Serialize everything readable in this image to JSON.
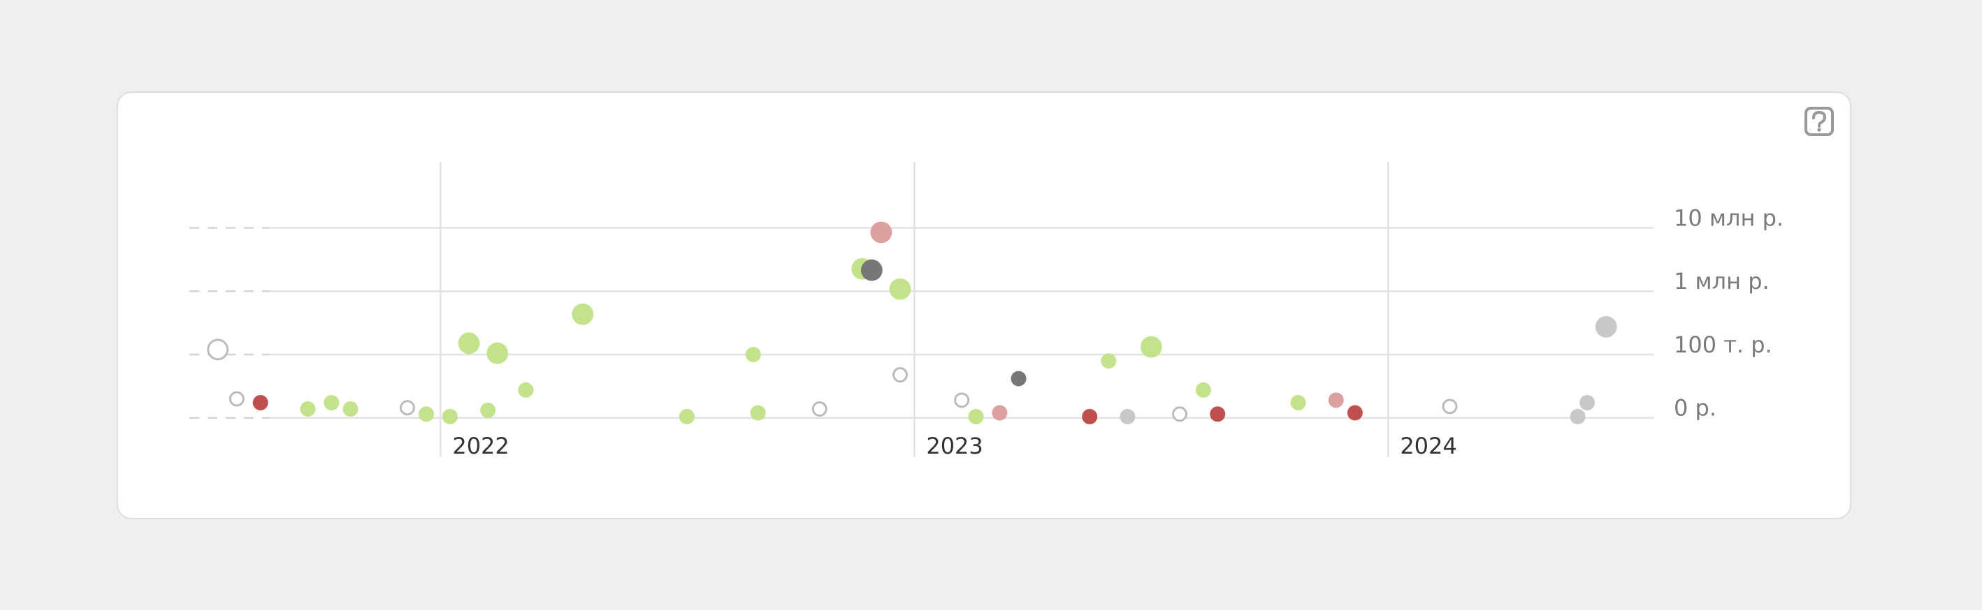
{
  "chart_data": {
    "type": "scatter",
    "xlim": [
      2021.47,
      2024.56
    ],
    "xticks": [
      2022,
      2023,
      2024
    ],
    "ylim": [
      -62000,
      110000000
    ],
    "yticks": [
      {
        "value": 0,
        "label": "0 р."
      },
      {
        "value": 100000,
        "label": "100 т. р."
      },
      {
        "value": 1000000,
        "label": "1 млн р."
      },
      {
        "value": 10000000,
        "label": "10 млн р."
      }
    ],
    "grid": true,
    "series": [
      {
        "color": "#ffffff",
        "stroke": "#bbbbbb",
        "x": [
          2021.53,
          2021.57,
          2021.93,
          2022.8,
          2022.97,
          2023.1,
          2023.56,
          2024.13
        ],
        "values": [
          120000,
          30000,
          16000,
          14000,
          68000,
          28000,
          6000,
          18000
        ],
        "sizes": [
          1.4,
          1,
          1,
          1,
          1,
          1,
          1,
          1
        ]
      },
      {
        "color": "#c0504d",
        "x": [
          2021.62,
          2023.37,
          2023.64,
          2023.93
        ],
        "values": [
          24000,
          2000,
          6000,
          8000
        ],
        "sizes": [
          1,
          1,
          1,
          1
        ]
      },
      {
        "color": "#dda0a0",
        "x": [
          2022.93,
          2023.18,
          2023.89
        ],
        "values": [
          8500000,
          8000,
          28000
        ],
        "sizes": [
          1.4,
          1,
          1
        ]
      },
      {
        "color": "#c2e28b",
        "x": [
          2021.72,
          2021.77,
          2021.81,
          2021.97,
          2022.02,
          2022.06,
          2022.1,
          2022.12,
          2022.18,
          2022.3,
          2022.52,
          2022.66,
          2022.67,
          2022.89,
          2022.97,
          2023.13,
          2023.41,
          2023.5,
          2023.61,
          2023.81
        ],
        "values": [
          14000,
          24000,
          14000,
          6000,
          2000,
          151000,
          12000,
          105000,
          44000,
          433000,
          2000,
          100000,
          8000,
          2250000,
          1080000,
          2000,
          90000,
          132000,
          44000,
          24000
        ],
        "sizes": [
          1,
          1,
          1,
          1,
          1,
          1.4,
          1,
          1.4,
          1,
          1.4,
          1,
          1,
          1,
          1.4,
          1.4,
          1,
          1,
          1.4,
          1,
          1
        ]
      },
      {
        "color": "#777777",
        "x": [
          2022.91,
          2023.22
        ],
        "values": [
          2150000,
          62000
        ],
        "sizes": [
          1.4,
          1
        ]
      },
      {
        "color": "#c8c8c8",
        "x": [
          2023.45,
          2024.4,
          2024.42,
          2024.46
        ],
        "values": [
          2000,
          2000,
          24000,
          274000
        ],
        "sizes": [
          1,
          1,
          1,
          1.4
        ]
      }
    ]
  }
}
